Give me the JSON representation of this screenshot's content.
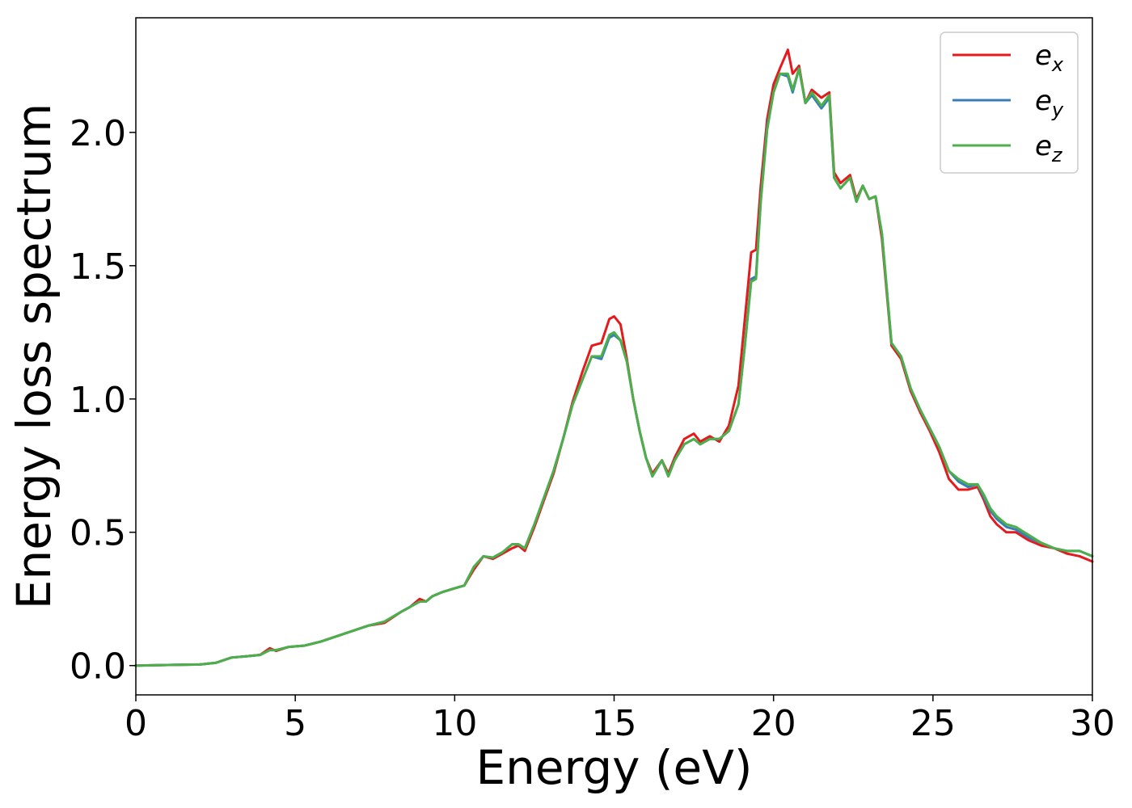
{
  "chart_data": {
    "type": "line",
    "title": "",
    "xlabel": "Energy (eV)",
    "ylabel": "Energy loss spectrum",
    "xlim": [
      0,
      30
    ],
    "ylim": [
      -0.11,
      2.43
    ],
    "xticks": [
      0,
      5,
      10,
      15,
      20,
      25,
      30
    ],
    "yticks": [
      0.0,
      0.5,
      1.0,
      1.5,
      2.0
    ],
    "xtick_labels": [
      "0",
      "5",
      "10",
      "15",
      "20",
      "25",
      "30"
    ],
    "ytick_labels": [
      "0.0",
      "0.5",
      "1.0",
      "1.5",
      "2.0"
    ],
    "grid": false,
    "legend_position": "top-right",
    "series": [
      {
        "name": "e_x",
        "legend_base": "e",
        "legend_sub": "x",
        "color": "#e41a1c",
        "x": [
          0,
          1,
          2,
          2.5,
          3,
          3.5,
          3.9,
          4.2,
          4.4,
          4.8,
          5.3,
          5.8,
          6.3,
          6.8,
          7.3,
          7.8,
          8.3,
          8.6,
          8.9,
          9.1,
          9.3,
          9.6,
          10.0,
          10.3,
          10.6,
          10.9,
          11.2,
          11.5,
          11.8,
          12.0,
          12.2,
          12.5,
          12.8,
          13.1,
          13.4,
          13.7,
          14.0,
          14.3,
          14.6,
          14.85,
          15.0,
          15.2,
          15.4,
          15.6,
          15.8,
          16.0,
          16.2,
          16.5,
          16.7,
          16.9,
          17.2,
          17.5,
          17.7,
          18.0,
          18.3,
          18.6,
          18.9,
          19.1,
          19.3,
          19.45,
          19.6,
          19.8,
          20.0,
          20.2,
          20.45,
          20.6,
          20.8,
          21.0,
          21.2,
          21.5,
          21.75,
          21.9,
          22.1,
          22.4,
          22.6,
          22.8,
          23.0,
          23.2,
          23.4,
          23.7,
          24.0,
          24.3,
          24.6,
          24.9,
          25.2,
          25.5,
          25.8,
          26.1,
          26.4,
          26.6,
          26.8,
          27.0,
          27.3,
          27.6,
          28.0,
          28.4,
          28.8,
          29.2,
          29.6,
          30.0
        ],
        "values": [
          0.0,
          0.002,
          0.004,
          0.01,
          0.03,
          0.035,
          0.04,
          0.065,
          0.055,
          0.07,
          0.075,
          0.09,
          0.11,
          0.13,
          0.15,
          0.16,
          0.2,
          0.22,
          0.25,
          0.24,
          0.26,
          0.275,
          0.29,
          0.3,
          0.36,
          0.41,
          0.4,
          0.42,
          0.44,
          0.45,
          0.43,
          0.52,
          0.62,
          0.72,
          0.85,
          0.99,
          1.1,
          1.2,
          1.21,
          1.3,
          1.31,
          1.28,
          1.15,
          1.0,
          0.88,
          0.78,
          0.72,
          0.77,
          0.72,
          0.78,
          0.85,
          0.87,
          0.84,
          0.86,
          0.84,
          0.9,
          1.05,
          1.3,
          1.55,
          1.56,
          1.8,
          2.05,
          2.18,
          2.24,
          2.31,
          2.22,
          2.25,
          2.11,
          2.16,
          2.13,
          2.15,
          1.85,
          1.81,
          1.84,
          1.75,
          1.8,
          1.75,
          1.76,
          1.6,
          1.2,
          1.15,
          1.03,
          0.95,
          0.88,
          0.8,
          0.7,
          0.66,
          0.66,
          0.67,
          0.62,
          0.56,
          0.53,
          0.5,
          0.5,
          0.47,
          0.45,
          0.44,
          0.42,
          0.41,
          0.39
        ]
      },
      {
        "name": "e_y",
        "legend_base": "e",
        "legend_sub": "y",
        "color": "#377eb8",
        "x": [
          0,
          1,
          2,
          2.5,
          3,
          3.5,
          3.9,
          4.2,
          4.4,
          4.8,
          5.3,
          5.8,
          6.3,
          6.8,
          7.3,
          7.8,
          8.3,
          8.6,
          8.9,
          9.1,
          9.3,
          9.6,
          10.0,
          10.3,
          10.6,
          10.9,
          11.2,
          11.5,
          11.8,
          12.0,
          12.2,
          12.5,
          12.8,
          13.1,
          13.4,
          13.7,
          14.0,
          14.3,
          14.6,
          14.85,
          15.0,
          15.2,
          15.4,
          15.6,
          15.8,
          16.0,
          16.2,
          16.5,
          16.7,
          16.9,
          17.2,
          17.5,
          17.7,
          18.0,
          18.3,
          18.6,
          18.9,
          19.1,
          19.3,
          19.45,
          19.6,
          19.8,
          20.0,
          20.2,
          20.45,
          20.6,
          20.8,
          21.0,
          21.2,
          21.5,
          21.75,
          21.9,
          22.1,
          22.4,
          22.6,
          22.8,
          23.0,
          23.2,
          23.4,
          23.7,
          24.0,
          24.3,
          24.6,
          24.9,
          25.2,
          25.5,
          25.8,
          26.1,
          26.4,
          26.6,
          26.8,
          27.0,
          27.3,
          27.6,
          28.0,
          28.4,
          28.8,
          29.2,
          29.6,
          30.0
        ],
        "values": [
          0.0,
          0.002,
          0.004,
          0.01,
          0.03,
          0.035,
          0.04,
          0.058,
          0.058,
          0.07,
          0.075,
          0.09,
          0.11,
          0.13,
          0.15,
          0.165,
          0.2,
          0.22,
          0.24,
          0.24,
          0.26,
          0.275,
          0.29,
          0.3,
          0.37,
          0.41,
          0.405,
          0.425,
          0.455,
          0.455,
          0.44,
          0.53,
          0.63,
          0.73,
          0.85,
          0.98,
          1.07,
          1.16,
          1.15,
          1.23,
          1.24,
          1.22,
          1.14,
          1.0,
          0.88,
          0.78,
          0.71,
          0.77,
          0.71,
          0.77,
          0.83,
          0.85,
          0.83,
          0.85,
          0.85,
          0.88,
          0.98,
          1.2,
          1.45,
          1.46,
          1.75,
          2.02,
          2.15,
          2.22,
          2.21,
          2.15,
          2.24,
          2.11,
          2.14,
          2.09,
          2.13,
          1.83,
          1.79,
          1.83,
          1.74,
          1.8,
          1.75,
          1.76,
          1.62,
          1.21,
          1.16,
          1.04,
          0.96,
          0.89,
          0.82,
          0.73,
          0.69,
          0.67,
          0.68,
          0.63,
          0.58,
          0.55,
          0.52,
          0.51,
          0.48,
          0.46,
          0.44,
          0.43,
          0.43,
          0.41
        ]
      },
      {
        "name": "e_z",
        "legend_base": "e",
        "legend_sub": "z",
        "color": "#4daf4a",
        "x": [
          0,
          1,
          2,
          2.5,
          3,
          3.5,
          3.9,
          4.2,
          4.4,
          4.8,
          5.3,
          5.8,
          6.3,
          6.8,
          7.3,
          7.8,
          8.3,
          8.6,
          8.9,
          9.1,
          9.3,
          9.6,
          10.0,
          10.3,
          10.6,
          10.9,
          11.2,
          11.5,
          11.8,
          12.0,
          12.2,
          12.5,
          12.8,
          13.1,
          13.4,
          13.7,
          14.0,
          14.3,
          14.6,
          14.85,
          15.0,
          15.2,
          15.4,
          15.6,
          15.8,
          16.0,
          16.2,
          16.5,
          16.7,
          16.9,
          17.2,
          17.5,
          17.7,
          18.0,
          18.3,
          18.6,
          18.9,
          19.1,
          19.3,
          19.45,
          19.6,
          19.8,
          20.0,
          20.2,
          20.45,
          20.6,
          20.8,
          21.0,
          21.2,
          21.5,
          21.75,
          21.9,
          22.1,
          22.4,
          22.6,
          22.8,
          23.0,
          23.2,
          23.4,
          23.7,
          24.0,
          24.3,
          24.6,
          24.9,
          25.2,
          25.5,
          25.8,
          26.1,
          26.4,
          26.6,
          26.8,
          27.0,
          27.3,
          27.6,
          28.0,
          28.4,
          28.8,
          29.2,
          29.6,
          30.0
        ],
        "values": [
          0.0,
          0.002,
          0.004,
          0.01,
          0.03,
          0.035,
          0.04,
          0.058,
          0.058,
          0.07,
          0.075,
          0.09,
          0.11,
          0.13,
          0.15,
          0.165,
          0.2,
          0.22,
          0.24,
          0.24,
          0.26,
          0.275,
          0.29,
          0.3,
          0.37,
          0.41,
          0.405,
          0.425,
          0.455,
          0.455,
          0.44,
          0.53,
          0.63,
          0.73,
          0.85,
          0.98,
          1.07,
          1.16,
          1.16,
          1.24,
          1.25,
          1.22,
          1.14,
          1.0,
          0.88,
          0.78,
          0.71,
          0.77,
          0.71,
          0.77,
          0.83,
          0.85,
          0.83,
          0.85,
          0.85,
          0.88,
          0.98,
          1.2,
          1.44,
          1.45,
          1.74,
          2.01,
          2.15,
          2.22,
          2.22,
          2.16,
          2.24,
          2.11,
          2.15,
          2.1,
          2.14,
          1.83,
          1.79,
          1.83,
          1.74,
          1.8,
          1.75,
          1.76,
          1.62,
          1.21,
          1.16,
          1.04,
          0.96,
          0.89,
          0.82,
          0.73,
          0.7,
          0.68,
          0.68,
          0.64,
          0.59,
          0.56,
          0.53,
          0.52,
          0.49,
          0.46,
          0.44,
          0.43,
          0.43,
          0.41
        ]
      }
    ]
  }
}
